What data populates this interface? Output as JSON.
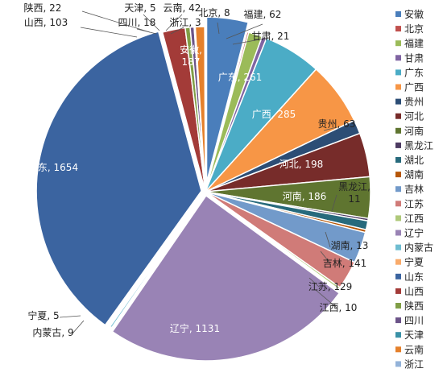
{
  "chart_data": {
    "type": "pie",
    "title": "",
    "legend_position": "right",
    "slices": [
      {
        "name": "安徽",
        "value": 187,
        "label": "安徽,\n187",
        "color": "#4a7ebb"
      },
      {
        "name": "北京",
        "value": 8,
        "label": "北京, 8",
        "color": "#c0504d"
      },
      {
        "name": "福建",
        "value": 62,
        "label": "福建, 62",
        "color": "#9bbb59"
      },
      {
        "name": "甘肃",
        "value": 21,
        "label": "甘肃, 21",
        "color": "#8064a2"
      },
      {
        "name": "广东",
        "value": 261,
        "label": "广东, 261",
        "color": "#4bacc6"
      },
      {
        "name": "广西",
        "value": 285,
        "label": "广西, 285",
        "color": "#f79646"
      },
      {
        "name": "贵州",
        "value": 63,
        "label": "贵州, 63",
        "color": "#2c4d75"
      },
      {
        "name": "河北",
        "value": 198,
        "label": "河北, 198",
        "color": "#772c2a"
      },
      {
        "name": "河南",
        "value": 186,
        "label": "河南, 186",
        "color": "#5f7530"
      },
      {
        "name": "黑龙江",
        "value": 11,
        "label": "黑龙江,\n11",
        "color": "#4d3b62"
      },
      {
        "name": "湖北",
        "value": 40,
        "label": "",
        "color": "#276a7c"
      },
      {
        "name": "湖南",
        "value": 13,
        "label": "湖南, 13",
        "color": "#b65708"
      },
      {
        "name": "吉林",
        "value": 141,
        "label": "吉林, 141",
        "color": "#729aca"
      },
      {
        "name": "江苏",
        "value": 129,
        "label": "江苏, 129",
        "color": "#d07b78"
      },
      {
        "name": "江西",
        "value": 10,
        "label": "江西, 10",
        "color": "#afc97a"
      },
      {
        "name": "辽宁",
        "value": 1131,
        "label": "辽宁, 1131",
        "color": "#9983b5"
      },
      {
        "name": "内蒙古",
        "value": 9,
        "label": "内蒙古, 9",
        "color": "#6fbdd1"
      },
      {
        "name": "宁夏",
        "value": 5,
        "label": "宁夏, 5",
        "color": "#f9ab6b"
      },
      {
        "name": "山东",
        "value": 1654,
        "label": "山东, 1654",
        "color": "#3b64a0"
      },
      {
        "name": "山西",
        "value": 103,
        "label": "山西, 103",
        "color": "#a33b38"
      },
      {
        "name": "陕西",
        "value": 22,
        "label": "陕西, 22",
        "color": "#809e46"
      },
      {
        "name": "四川",
        "value": 18,
        "label": "四川, 18",
        "color": "#6b5388"
      },
      {
        "name": "天津",
        "value": 5,
        "label": "天津, 5",
        "color": "#3a91a7"
      },
      {
        "name": "云南",
        "value": 42,
        "label": "云南, 42",
        "color": "#e5802b"
      },
      {
        "name": "浙江",
        "value": 3,
        "label": "浙江, 3",
        "color": "#94b3d9"
      }
    ]
  }
}
